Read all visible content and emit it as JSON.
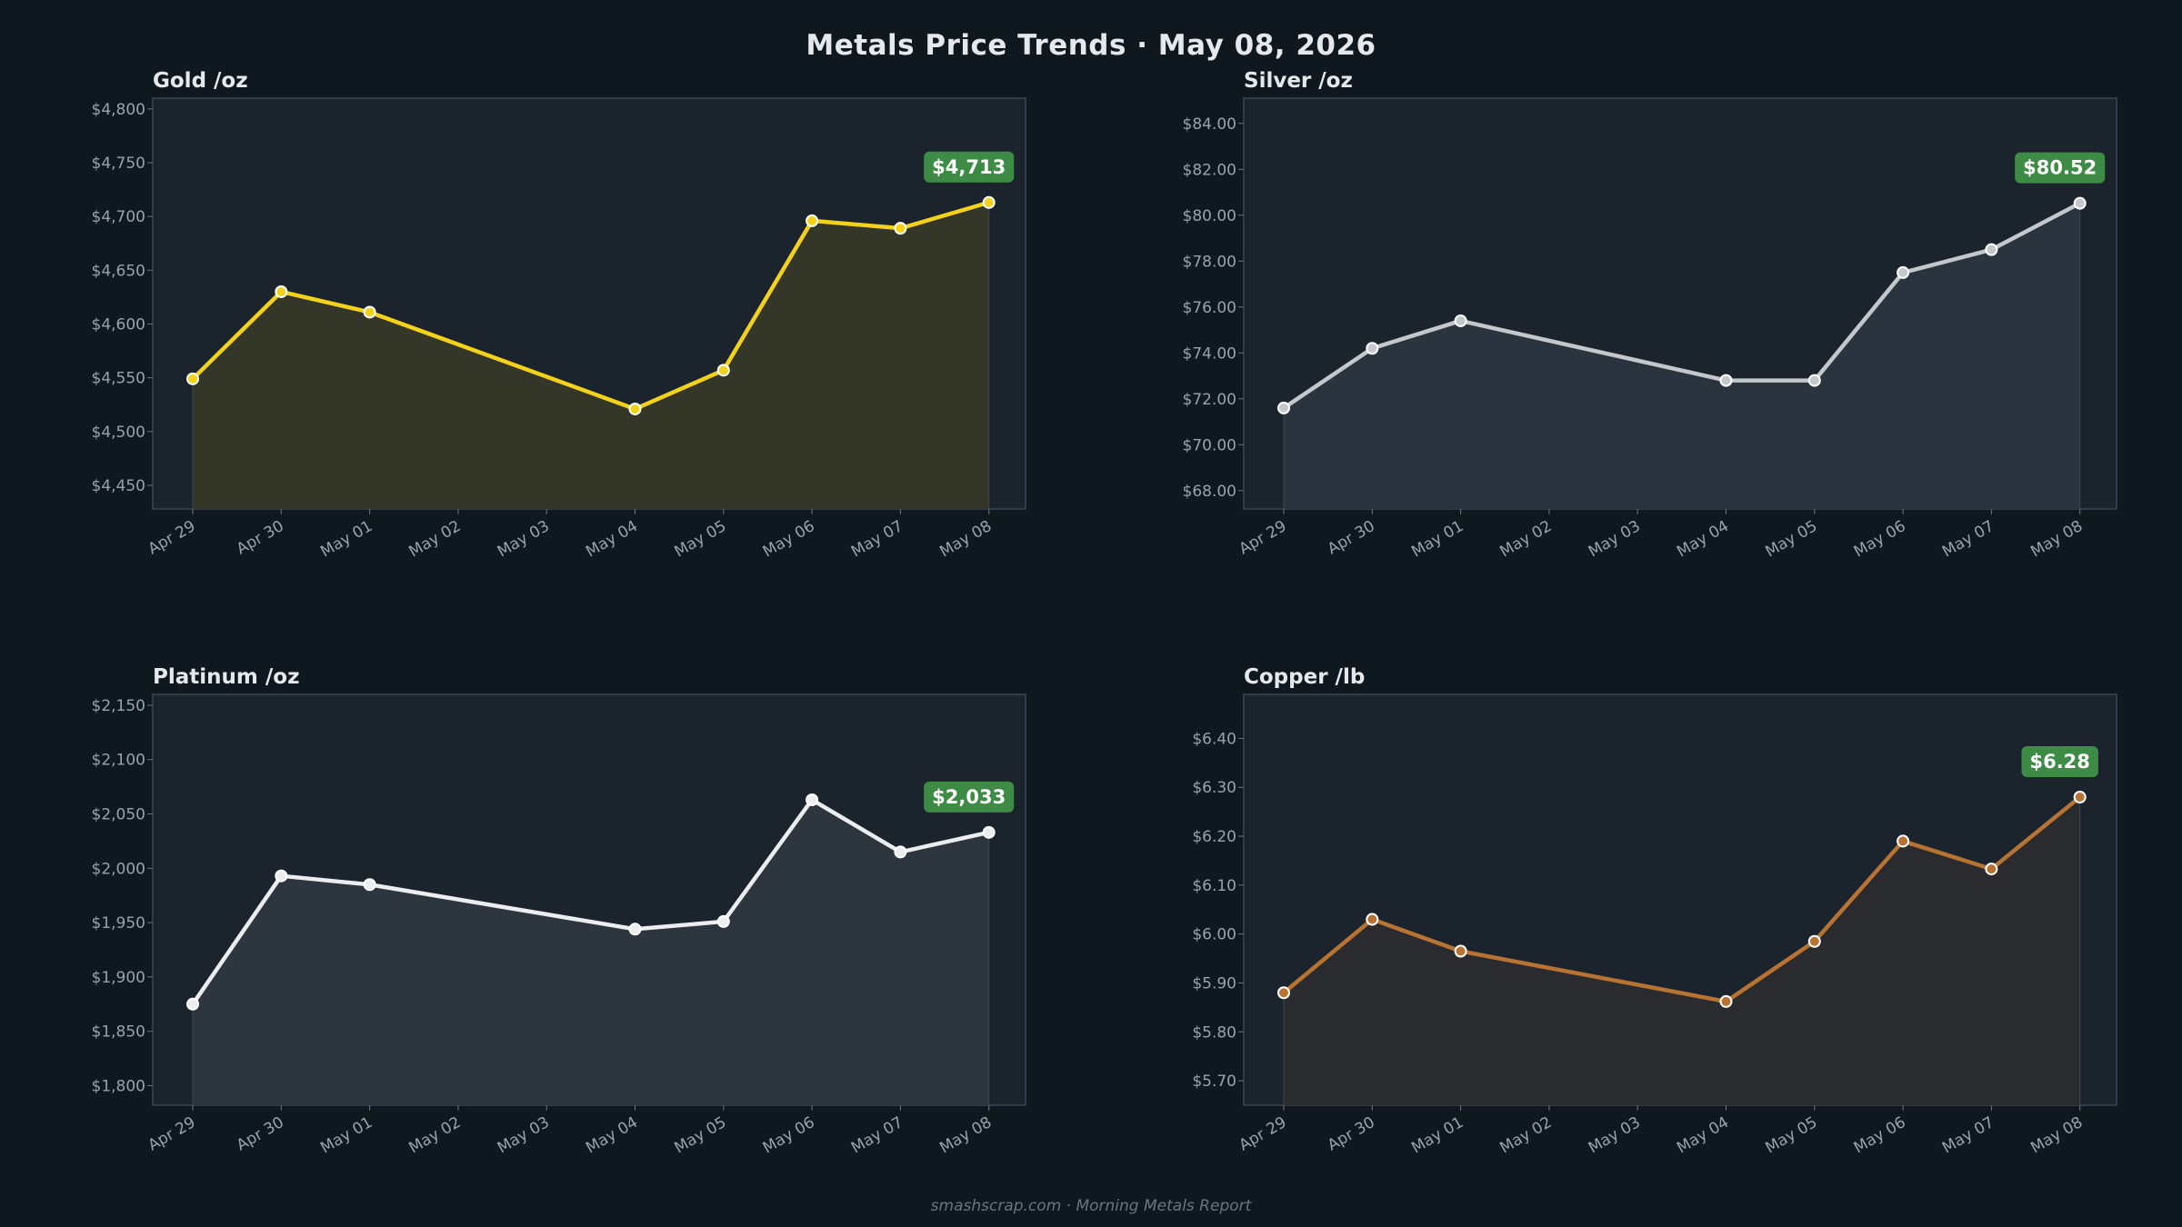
{
  "title": "Metals Price Trends  ·  May 08, 2026",
  "footer": "smashscrap.com  ·  Morning Metals Report",
  "colors": {
    "background": "#0f171f",
    "plot_bg": "#1b242d",
    "badge": "#3d8b45",
    "axis_text": "#9aa3ab"
  },
  "chart_data": [
    {
      "type": "line",
      "title": "Gold  /oz",
      "line_color": "#f5d21a",
      "fill_color": "#343628",
      "x": [
        "Apr 29",
        "Apr 30",
        "May 01",
        "May 02",
        "May 03",
        "May 04",
        "May 05",
        "May 06",
        "May 07",
        "May 08"
      ],
      "points": [
        {
          "x": "Apr 29",
          "y": 4549
        },
        {
          "x": "Apr 30",
          "y": 4630
        },
        {
          "x": "May 01",
          "y": 4611
        },
        {
          "x": "May 04",
          "y": 4521
        },
        {
          "x": "May 05",
          "y": 4557
        },
        {
          "x": "May 06",
          "y": 4696
        },
        {
          "x": "May 07",
          "y": 4689
        },
        {
          "x": "May 08",
          "y": 4713
        }
      ],
      "ylim": [
        4428,
        4810
      ],
      "yticks": [
        4450,
        4500,
        4550,
        4600,
        4650,
        4700,
        4750,
        4800
      ],
      "ytick_labels": [
        "$4,450",
        "$4,500",
        "$4,550",
        "$4,600",
        "$4,650",
        "$4,700",
        "$4,750",
        "$4,800"
      ],
      "latest_label": "$4,713",
      "grid": false
    },
    {
      "type": "line",
      "title": "Silver  /oz",
      "line_color": "#c4c8cc",
      "fill_color": "#2a343e",
      "x": [
        "Apr 29",
        "Apr 30",
        "May 01",
        "May 02",
        "May 03",
        "May 04",
        "May 05",
        "May 06",
        "May 07",
        "May 08"
      ],
      "points": [
        {
          "x": "Apr 29",
          "y": 71.6
        },
        {
          "x": "Apr 30",
          "y": 74.2
        },
        {
          "x": "May 01",
          "y": 75.4
        },
        {
          "x": "May 04",
          "y": 72.8
        },
        {
          "x": "May 05",
          "y": 72.8
        },
        {
          "x": "May 06",
          "y": 77.5
        },
        {
          "x": "May 07",
          "y": 78.5
        },
        {
          "x": "May 08",
          "y": 80.52
        }
      ],
      "ylim": [
        67.2,
        85.1
      ],
      "yticks": [
        68,
        70,
        72,
        74,
        76,
        78,
        80,
        82,
        84
      ],
      "ytick_labels": [
        "$68.00",
        "$70.00",
        "$72.00",
        "$74.00",
        "$76.00",
        "$78.00",
        "$80.00",
        "$82.00",
        "$84.00"
      ],
      "latest_label": "$80.52",
      "grid": false
    },
    {
      "type": "line",
      "title": "Platinum  /oz",
      "line_color": "#ebedef",
      "fill_color": "#2d363f",
      "x": [
        "Apr 29",
        "Apr 30",
        "May 01",
        "May 02",
        "May 03",
        "May 04",
        "May 05",
        "May 06",
        "May 07",
        "May 08"
      ],
      "points": [
        {
          "x": "Apr 29",
          "y": 1875
        },
        {
          "x": "Apr 30",
          "y": 1993
        },
        {
          "x": "May 01",
          "y": 1985
        },
        {
          "x": "May 04",
          "y": 1944
        },
        {
          "x": "May 05",
          "y": 1951
        },
        {
          "x": "May 06",
          "y": 2063
        },
        {
          "x": "May 07",
          "y": 2015
        },
        {
          "x": "May 08",
          "y": 2033
        }
      ],
      "ylim": [
        1782,
        2160
      ],
      "yticks": [
        1800,
        1850,
        1900,
        1950,
        2000,
        2050,
        2100,
        2150
      ],
      "ytick_labels": [
        "$1,800",
        "$1,850",
        "$1,900",
        "$1,950",
        "$2,000",
        "$2,050",
        "$2,100",
        "$2,150"
      ],
      "latest_label": "$2,033",
      "grid": false
    },
    {
      "type": "line",
      "title": "Copper  /lb",
      "line_color": "#b87333",
      "fill_color": "#2a2b2e",
      "x": [
        "Apr 29",
        "Apr 30",
        "May 01",
        "May 02",
        "May 03",
        "May 04",
        "May 05",
        "May 06",
        "May 07",
        "May 08"
      ],
      "points": [
        {
          "x": "Apr 29",
          "y": 5.88
        },
        {
          "x": "Apr 30",
          "y": 6.03
        },
        {
          "x": "May 01",
          "y": 5.965
        },
        {
          "x": "May 04",
          "y": 5.862
        },
        {
          "x": "May 05",
          "y": 5.985
        },
        {
          "x": "May 06",
          "y": 6.19
        },
        {
          "x": "May 07",
          "y": 6.133
        },
        {
          "x": "May 08",
          "y": 6.28
        }
      ],
      "ylim": [
        5.65,
        6.49
      ],
      "yticks": [
        5.7,
        5.8,
        5.9,
        6.0,
        6.1,
        6.2,
        6.3,
        6.4
      ],
      "ytick_labels": [
        "$5.70",
        "$5.80",
        "$5.90",
        "$6.00",
        "$6.10",
        "$6.20",
        "$6.30",
        "$6.40"
      ],
      "latest_label": "$6.28",
      "grid": false
    }
  ]
}
